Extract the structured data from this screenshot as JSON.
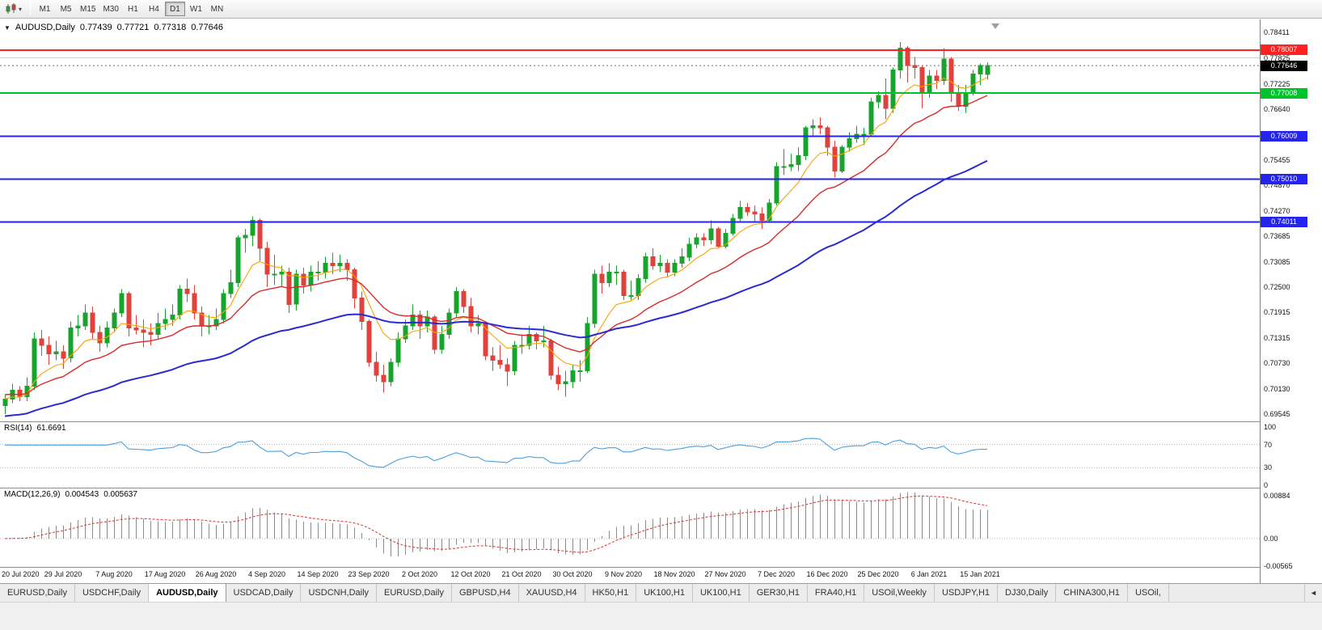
{
  "icons": {
    "dropdown": "▾",
    "collapse": "▼",
    "tab_scroll_left": "◄"
  },
  "toolbar": {
    "periods": [
      "M1",
      "M5",
      "M15",
      "M30",
      "H1",
      "H4",
      "D1",
      "W1",
      "MN"
    ],
    "selected_period": "D1"
  },
  "chart": {
    "symbol_label": "AUDUSD,Daily",
    "open": "0.77439",
    "high": "0.77721",
    "low": "0.77318",
    "close": "0.77646"
  },
  "rsi_panel": {
    "label": "RSI(14)",
    "value": "61.6691",
    "scale": [
      "100",
      "70",
      "30",
      "0"
    ]
  },
  "macd_panel": {
    "label": "MACD(12,26,9)",
    "main_value": "0.004543",
    "signal_value": "0.005637",
    "scale": [
      "0.00884",
      "0.00",
      "-0.00565"
    ]
  },
  "tabs": {
    "active_index": 2,
    "items": [
      "EURUSD,Daily",
      "USDCHF,Daily",
      "AUDUSD,Daily",
      "USDCAD,Daily",
      "USDCNH,Daily",
      "EURUSD,Daily",
      "GBPUSD,H4",
      "XAUUSD,H4",
      "HK50,H1",
      "UK100,H1",
      "UK100,H1",
      "GER30,H1",
      "FRA40,H1",
      "USOil,Weekly",
      "USDJPY,H1",
      "DJ30,Daily",
      "CHINA300,H1",
      "USOil,"
    ],
    "active_label": "AUDUSD,Daily"
  },
  "chart_data": {
    "type": "candlestick",
    "symbol": "AUDUSD",
    "timeframe": "Daily",
    "colors": {
      "up": "#17a42c",
      "down": "#e2403a",
      "macd_hist": "#8c8c8c",
      "macd_signal": "#e03030",
      "current_line": "#6b6b6b"
    },
    "price_axis": {
      "min": 0.6938,
      "max": 0.7872,
      "ticks": [
        "0.78411",
        "0.77825",
        "0.77225",
        "0.76640",
        "0.75455",
        "0.74870",
        "0.74270",
        "0.73685",
        "0.73085",
        "0.72500",
        "0.71915",
        "0.71315",
        "0.70730",
        "0.70130",
        "0.69545"
      ]
    },
    "x_labels": [
      "20 Jul 2020",
      "29 Jul 2020",
      "7 Aug 2020",
      "17 Aug 2020",
      "26 Aug 2020",
      "4 Sep 2020",
      "14 Sep 2020",
      "23 Sep 2020",
      "2 Oct 2020",
      "12 Oct 2020",
      "21 Oct 2020",
      "30 Oct 2020",
      "9 Nov 2020",
      "18 Nov 2020",
      "27 Nov 2020",
      "7 Dec 2020",
      "16 Dec 2020",
      "25 Dec 2020",
      "6 Jan 2021",
      "15 Jan 2021"
    ],
    "horizontal_lines": [
      {
        "price": 0.78007,
        "label": "0.78007",
        "color": "#ff2020",
        "width": 2
      },
      {
        "price": 0.77825,
        "label": "",
        "color": "#d0d0d0",
        "width": 1
      },
      {
        "price": 0.77008,
        "label": "0.77008",
        "color": "#00c22a",
        "width": 2
      },
      {
        "price": 0.76009,
        "label": "0.76009",
        "color": "#2424ee",
        "width": 2
      },
      {
        "price": 0.7501,
        "label": "0.75010",
        "color": "#2424ee",
        "width": 2
      },
      {
        "price": 0.74011,
        "label": "0.74011",
        "color": "#2424ee",
        "width": 2
      }
    ],
    "current_price": {
      "value": 0.77646,
      "label": "0.77646",
      "badge_color": "#000000"
    },
    "moving_averages": [
      {
        "name": "fast",
        "period": 8,
        "color": "#ffa000"
      },
      {
        "name": "medium",
        "period": 20,
        "color": "#d62c2c"
      },
      {
        "name": "slow",
        "period": 55,
        "color": "#2b2bd0"
      }
    ],
    "indicators": {
      "rsi": {
        "period": 14,
        "color": "#4aa0dd",
        "levels": [
          70,
          30
        ],
        "range": [
          0,
          100
        ]
      },
      "macd": {
        "params": [
          12,
          26,
          9
        ],
        "range": [
          -0.0062,
          0.0095
        ]
      }
    },
    "candles_ohlc": [
      [
        0.6975,
        0.7,
        0.6955,
        0.699
      ],
      [
        0.699,
        0.7025,
        0.698,
        0.701
      ],
      [
        0.701,
        0.702,
        0.6985,
        0.6995
      ],
      [
        0.6995,
        0.704,
        0.6985,
        0.702
      ],
      [
        0.702,
        0.7145,
        0.701,
        0.713
      ],
      [
        0.713,
        0.715,
        0.709,
        0.7115
      ],
      [
        0.7115,
        0.7135,
        0.707,
        0.7095
      ],
      [
        0.7095,
        0.7125,
        0.708,
        0.71
      ],
      [
        0.71,
        0.7115,
        0.706,
        0.7085
      ],
      [
        0.7085,
        0.717,
        0.7075,
        0.7155
      ],
      [
        0.7155,
        0.7185,
        0.7135,
        0.716
      ],
      [
        0.716,
        0.721,
        0.715,
        0.719
      ],
      [
        0.719,
        0.7205,
        0.713,
        0.7145
      ],
      [
        0.7145,
        0.716,
        0.71,
        0.712
      ],
      [
        0.712,
        0.717,
        0.711,
        0.7155
      ],
      [
        0.7155,
        0.72,
        0.7145,
        0.719
      ],
      [
        0.719,
        0.7245,
        0.718,
        0.7235
      ],
      [
        0.7235,
        0.724,
        0.7135,
        0.7155
      ],
      [
        0.7155,
        0.7185,
        0.714,
        0.715
      ],
      [
        0.715,
        0.7175,
        0.711,
        0.7145
      ],
      [
        0.7145,
        0.7165,
        0.7115,
        0.714
      ],
      [
        0.714,
        0.719,
        0.713,
        0.7165
      ],
      [
        0.7165,
        0.72,
        0.715,
        0.7175
      ],
      [
        0.7175,
        0.721,
        0.716,
        0.7185
      ],
      [
        0.7185,
        0.7255,
        0.7175,
        0.7245
      ],
      [
        0.7245,
        0.727,
        0.7215,
        0.7235
      ],
      [
        0.7235,
        0.7255,
        0.7175,
        0.719
      ],
      [
        0.719,
        0.7205,
        0.7135,
        0.716
      ],
      [
        0.716,
        0.7185,
        0.714,
        0.716
      ],
      [
        0.716,
        0.72,
        0.715,
        0.7175
      ],
      [
        0.7175,
        0.7245,
        0.7165,
        0.7235
      ],
      [
        0.7235,
        0.729,
        0.7225,
        0.726
      ],
      [
        0.726,
        0.737,
        0.725,
        0.7365
      ],
      [
        0.7365,
        0.7385,
        0.733,
        0.737
      ],
      [
        0.737,
        0.7414,
        0.7345,
        0.7405
      ],
      [
        0.7405,
        0.741,
        0.731,
        0.734
      ],
      [
        0.734,
        0.7355,
        0.725,
        0.728
      ],
      [
        0.728,
        0.7325,
        0.7255,
        0.728
      ],
      [
        0.728,
        0.73,
        0.725,
        0.7285
      ],
      [
        0.7285,
        0.7295,
        0.719,
        0.721
      ],
      [
        0.721,
        0.729,
        0.7195,
        0.728
      ],
      [
        0.728,
        0.7295,
        0.7235,
        0.7255
      ],
      [
        0.7255,
        0.73,
        0.724,
        0.7285
      ],
      [
        0.7285,
        0.731,
        0.7265,
        0.7285
      ],
      [
        0.7285,
        0.732,
        0.727,
        0.7305
      ],
      [
        0.7305,
        0.733,
        0.728,
        0.73
      ],
      [
        0.73,
        0.7325,
        0.7285,
        0.7305
      ],
      [
        0.7305,
        0.7315,
        0.7265,
        0.729
      ],
      [
        0.729,
        0.7295,
        0.72,
        0.7225
      ],
      [
        0.7225,
        0.724,
        0.715,
        0.717
      ],
      [
        0.717,
        0.7175,
        0.7065,
        0.7075
      ],
      [
        0.7075,
        0.71,
        0.703,
        0.7045
      ],
      [
        0.7045,
        0.707,
        0.7005,
        0.703
      ],
      [
        0.703,
        0.7085,
        0.702,
        0.7075
      ],
      [
        0.7075,
        0.7145,
        0.7065,
        0.713
      ],
      [
        0.713,
        0.7175,
        0.712,
        0.716
      ],
      [
        0.716,
        0.721,
        0.715,
        0.7185
      ],
      [
        0.7185,
        0.7195,
        0.713,
        0.716
      ],
      [
        0.716,
        0.7195,
        0.7145,
        0.718
      ],
      [
        0.718,
        0.7185,
        0.7095,
        0.7105
      ],
      [
        0.7105,
        0.716,
        0.7095,
        0.714
      ],
      [
        0.714,
        0.72,
        0.713,
        0.719
      ],
      [
        0.719,
        0.725,
        0.718,
        0.724
      ],
      [
        0.724,
        0.7245,
        0.719,
        0.7205
      ],
      [
        0.7205,
        0.7225,
        0.7145,
        0.716
      ],
      [
        0.716,
        0.7185,
        0.714,
        0.7165
      ],
      [
        0.7165,
        0.717,
        0.708,
        0.709
      ],
      [
        0.709,
        0.711,
        0.7055,
        0.708
      ],
      [
        0.708,
        0.7115,
        0.706,
        0.707
      ],
      [
        0.707,
        0.7085,
        0.702,
        0.7055
      ],
      [
        0.7055,
        0.7125,
        0.7045,
        0.7115
      ],
      [
        0.7115,
        0.714,
        0.7095,
        0.7115
      ],
      [
        0.7115,
        0.716,
        0.7105,
        0.714
      ],
      [
        0.714,
        0.7145,
        0.7105,
        0.7125
      ],
      [
        0.7125,
        0.716,
        0.711,
        0.7125
      ],
      [
        0.7125,
        0.713,
        0.7035,
        0.7045
      ],
      [
        0.7045,
        0.7065,
        0.701,
        0.7025
      ],
      [
        0.7025,
        0.7055,
        0.6995,
        0.703
      ],
      [
        0.703,
        0.707,
        0.7015,
        0.7055
      ],
      [
        0.7055,
        0.708,
        0.703,
        0.7055
      ],
      [
        0.7055,
        0.718,
        0.705,
        0.7165
      ],
      [
        0.7165,
        0.729,
        0.7155,
        0.728
      ],
      [
        0.728,
        0.73,
        0.7235,
        0.726
      ],
      [
        0.726,
        0.7305,
        0.725,
        0.7285
      ],
      [
        0.7285,
        0.73,
        0.7255,
        0.7285
      ],
      [
        0.7285,
        0.729,
        0.722,
        0.723
      ],
      [
        0.723,
        0.7265,
        0.722,
        0.723
      ],
      [
        0.723,
        0.728,
        0.722,
        0.727
      ],
      [
        0.727,
        0.733,
        0.726,
        0.732
      ],
      [
        0.732,
        0.734,
        0.729,
        0.73
      ],
      [
        0.73,
        0.7325,
        0.7285,
        0.7305
      ],
      [
        0.7305,
        0.7315,
        0.7275,
        0.7285
      ],
      [
        0.7285,
        0.7315,
        0.7275,
        0.7305
      ],
      [
        0.7305,
        0.734,
        0.7295,
        0.732
      ],
      [
        0.732,
        0.7365,
        0.731,
        0.735
      ],
      [
        0.735,
        0.7375,
        0.734,
        0.7365
      ],
      [
        0.7365,
        0.7375,
        0.7345,
        0.736
      ],
      [
        0.736,
        0.7405,
        0.735,
        0.7385
      ],
      [
        0.7385,
        0.739,
        0.734,
        0.7345
      ],
      [
        0.7345,
        0.7385,
        0.734,
        0.7375
      ],
      [
        0.7375,
        0.742,
        0.737,
        0.741
      ],
      [
        0.741,
        0.745,
        0.74,
        0.7435
      ],
      [
        0.7435,
        0.7445,
        0.7415,
        0.7425
      ],
      [
        0.7425,
        0.744,
        0.74,
        0.742
      ],
      [
        0.742,
        0.7435,
        0.7385,
        0.7405
      ],
      [
        0.7405,
        0.7455,
        0.74,
        0.7445
      ],
      [
        0.7445,
        0.754,
        0.744,
        0.753
      ],
      [
        0.753,
        0.757,
        0.751,
        0.753
      ],
      [
        0.753,
        0.756,
        0.752,
        0.7535
      ],
      [
        0.7535,
        0.7575,
        0.752,
        0.7555
      ],
      [
        0.7555,
        0.7625,
        0.7545,
        0.762
      ],
      [
        0.762,
        0.764,
        0.76,
        0.7625
      ],
      [
        0.7625,
        0.7645,
        0.7605,
        0.762
      ],
      [
        0.762,
        0.7625,
        0.7555,
        0.7575
      ],
      [
        0.7575,
        0.759,
        0.7505,
        0.752
      ],
      [
        0.752,
        0.758,
        0.7515,
        0.7575
      ],
      [
        0.7575,
        0.761,
        0.7565,
        0.7595
      ],
      [
        0.7595,
        0.7625,
        0.7585,
        0.7605
      ],
      [
        0.7605,
        0.762,
        0.758,
        0.7605
      ],
      [
        0.7605,
        0.769,
        0.76,
        0.768
      ],
      [
        0.768,
        0.7705,
        0.7665,
        0.7695
      ],
      [
        0.7695,
        0.7735,
        0.764,
        0.7665
      ],
      [
        0.7665,
        0.776,
        0.7655,
        0.7755
      ],
      [
        0.7755,
        0.7819,
        0.7735,
        0.7805
      ],
      [
        0.7805,
        0.781,
        0.7725,
        0.7765
      ],
      [
        0.7765,
        0.7785,
        0.7735,
        0.776
      ],
      [
        0.776,
        0.7765,
        0.7665,
        0.77
      ],
      [
        0.77,
        0.7755,
        0.769,
        0.774
      ],
      [
        0.774,
        0.7755,
        0.771,
        0.773
      ],
      [
        0.773,
        0.7805,
        0.772,
        0.778
      ],
      [
        0.778,
        0.7785,
        0.768,
        0.77
      ],
      [
        0.77,
        0.772,
        0.766,
        0.767
      ],
      [
        0.767,
        0.772,
        0.7655,
        0.77
      ],
      [
        0.77,
        0.7755,
        0.7695,
        0.7745
      ],
      [
        0.7745,
        0.777,
        0.772,
        0.7765
      ],
      [
        0.77439,
        0.77721,
        0.77318,
        0.77646
      ]
    ]
  }
}
